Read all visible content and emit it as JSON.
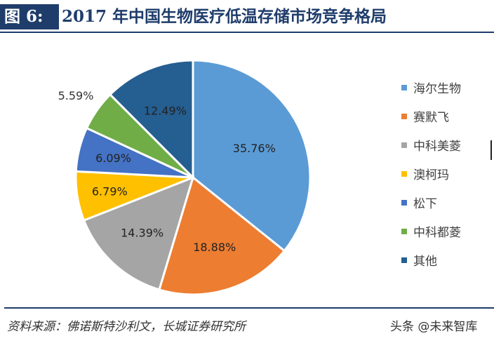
{
  "header": {
    "figure_label": "图 6:",
    "title": "2017 年中国生物医疗低温存储市场竞争格局"
  },
  "chart_data": {
    "type": "pie",
    "title": "2017 年中国生物医疗低温存储市场竞争格局",
    "categories": [
      "海尔生物",
      "赛默飞",
      "中科美菱",
      "澳柯玛",
      "松下",
      "中科都菱",
      "其他"
    ],
    "values": [
      35.76,
      18.88,
      14.39,
      6.79,
      6.09,
      5.59,
      12.49
    ],
    "data_labels": [
      "35.76%",
      "18.88%",
      "14.39%",
      "6.79%",
      "6.09%",
      "5.59%",
      "12.49%"
    ],
    "colors": [
      "#5b9bd5",
      "#ed7d31",
      "#a5a5a5",
      "#ffc000",
      "#4472c4",
      "#70ad47",
      "#255e91"
    ],
    "legend_position": "right",
    "start_angle": "12 o'clock, clockwise"
  },
  "footer": {
    "source": "资料来源：佛诺斯特沙利文，长城证券研究所",
    "watermark": "头条 @未来智库"
  }
}
